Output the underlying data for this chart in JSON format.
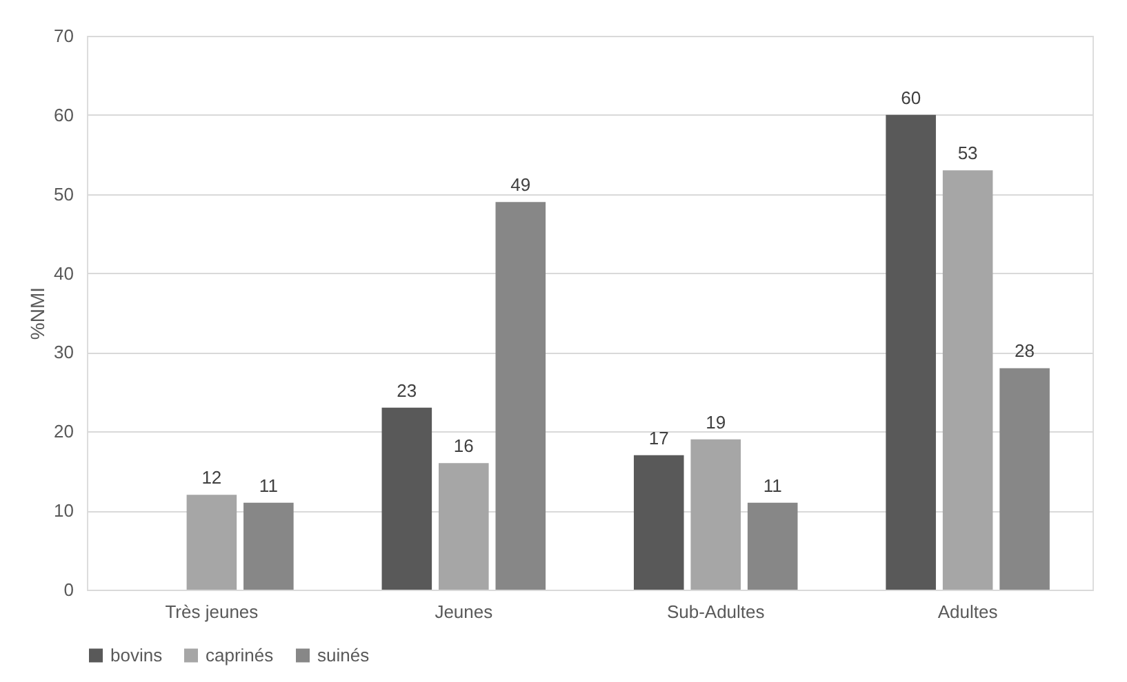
{
  "chart_data": {
    "type": "bar",
    "ylabel": "%NMI",
    "categories": [
      "Très jeunes",
      "Jeunes",
      "Sub-Adultes",
      "Adultes"
    ],
    "series": [
      {
        "name": "bovins",
        "color": "#595959",
        "values": [
          null,
          23,
          17,
          60
        ]
      },
      {
        "name": "caprinés",
        "color": "#a6a6a6",
        "values": [
          12,
          16,
          19,
          53
        ]
      },
      {
        "name": "suinés",
        "color": "#878787",
        "values": [
          11,
          49,
          11,
          28
        ]
      }
    ],
    "ylim": [
      0,
      70
    ],
    "yticks": [
      0,
      10,
      20,
      30,
      40,
      50,
      60,
      70
    ],
    "grid": "y",
    "legend": "bottom",
    "data_labels": true
  }
}
